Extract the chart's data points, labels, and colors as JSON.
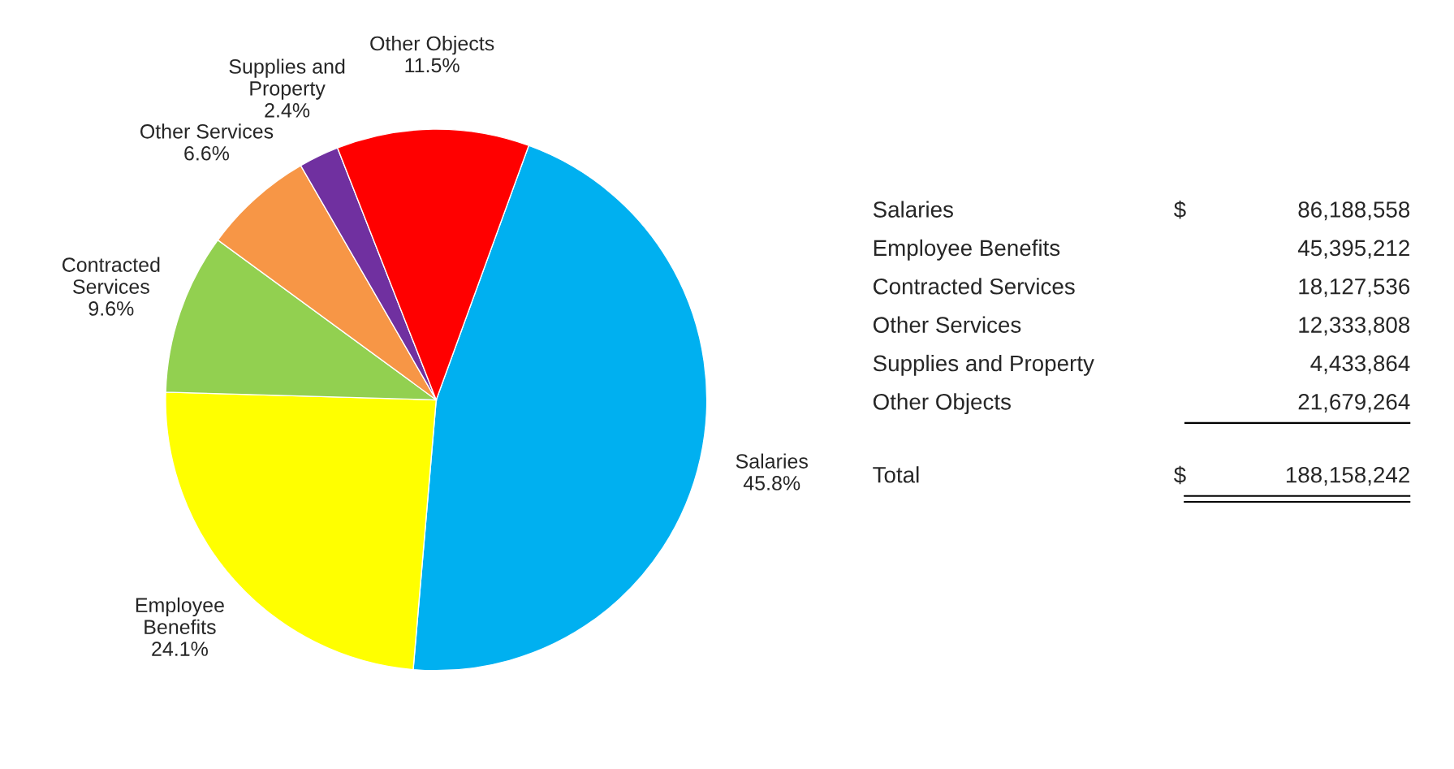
{
  "chart_data": [
    {
      "type": "pie",
      "categories": [
        "Salaries",
        "Employee Benefits",
        "Contracted Services",
        "Other Services",
        "Supplies and Property",
        "Other Objects"
      ],
      "values": [
        45.8,
        24.1,
        9.6,
        6.6,
        2.4,
        11.5
      ],
      "value_labels": [
        "45.8%",
        "24.1%",
        "9.6%",
        "6.6%",
        "2.4%",
        "11.5%"
      ],
      "colors": [
        "#00b0f0",
        "#ffff00",
        "#92d050",
        "#f79646",
        "#7030a0",
        "#ff0000"
      ]
    },
    {
      "type": "other",
      "categories": [
        "Salaries",
        "Employee Benefits",
        "Contracted Services",
        "Other Services",
        "Supplies and Property",
        "Other Objects"
      ],
      "value_labels": [
        "86,188,558",
        "45,395,212",
        "18,127,536",
        "12,333,808",
        "4,433,864",
        "21,679,264"
      ],
      "annotations": [
        "$",
        "Total",
        "$",
        "188,158,242"
      ]
    }
  ]
}
